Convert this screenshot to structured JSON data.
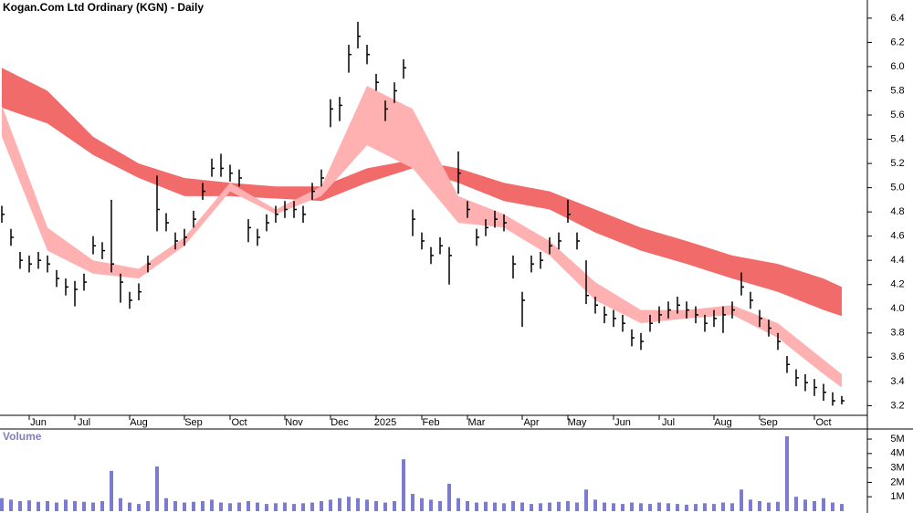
{
  "chart_data": [
    {
      "type": "ohlc",
      "title": "Kogan.Com Ltd Ordinary (KGN) - Daily",
      "categories": [
        null,
        null,
        null,
        "Jun",
        null,
        null,
        null,
        null,
        "Jul",
        null,
        null,
        null,
        null,
        null,
        "Aug",
        null,
        null,
        null,
        null,
        null,
        "Sep",
        null,
        null,
        null,
        null,
        "Oct",
        null,
        null,
        null,
        null,
        null,
        "Nov",
        null,
        null,
        null,
        null,
        "Dec",
        null,
        null,
        null,
        null,
        "2025",
        null,
        null,
        null,
        null,
        "Feb",
        null,
        null,
        null,
        null,
        "Mar",
        null,
        null,
        null,
        null,
        null,
        "Apr",
        null,
        null,
        null,
        null,
        "May",
        null,
        null,
        null,
        null,
        "Jun",
        null,
        null,
        null,
        null,
        "Jul",
        null,
        null,
        null,
        null,
        null,
        "Aug",
        null,
        null,
        null,
        null,
        "Sep",
        null,
        null,
        null,
        null,
        null,
        "Oct",
        null,
        null,
        null
      ],
      "close": [
        4.78,
        4.59,
        4.4,
        4.37,
        4.4,
        4.37,
        4.25,
        4.18,
        4.16,
        4.22,
        4.52,
        4.48,
        4.37,
        4.22,
        4.07,
        4.14,
        4.37,
        4.82,
        4.71,
        4.56,
        4.59,
        4.74,
        4.97,
        5.16,
        5.16,
        5.12,
        5.08,
        4.67,
        4.59,
        4.71,
        4.78,
        4.82,
        4.82,
        4.78,
        4.97,
        5.08,
        5.65,
        5.68,
        6.1,
        6.25,
        6.1,
        5.87,
        5.65,
        5.8,
        5.99,
        4.74,
        4.56,
        4.44,
        4.52,
        4.44,
        5.12,
        4.82,
        4.59,
        4.67,
        4.74,
        4.71,
        4.37,
        4.07,
        4.37,
        4.4,
        4.52,
        4.56,
        4.78,
        4.56,
        4.11,
        4.03,
        3.95,
        3.92,
        3.88,
        3.76,
        3.73,
        3.88,
        3.95,
        3.99,
        4.03,
        3.99,
        3.95,
        3.88,
        3.92,
        3.95,
        3.99,
        4.18,
        4.07,
        3.92,
        3.84,
        3.73,
        3.54,
        3.43,
        3.39,
        3.35,
        3.31,
        3.24,
        3.24
      ],
      "high": [
        4.85,
        4.66,
        4.47,
        4.44,
        4.47,
        4.44,
        4.32,
        4.25,
        4.23,
        4.29,
        4.6,
        4.55,
        4.9,
        4.29,
        4.14,
        4.21,
        4.44,
        5.1,
        4.79,
        4.63,
        4.66,
        4.81,
        5.04,
        5.24,
        5.28,
        5.19,
        5.15,
        4.74,
        4.66,
        4.78,
        4.85,
        4.89,
        4.89,
        4.85,
        5.04,
        5.15,
        5.73,
        5.75,
        6.18,
        6.37,
        6.18,
        5.94,
        5.72,
        5.87,
        6.06,
        4.82,
        4.63,
        4.51,
        4.59,
        4.51,
        5.3,
        4.89,
        4.66,
        4.74,
        4.81,
        4.78,
        4.44,
        4.14,
        4.44,
        4.47,
        4.59,
        4.63,
        4.9,
        4.63,
        4.4,
        4.1,
        4.02,
        3.99,
        3.95,
        3.83,
        3.8,
        3.95,
        4.02,
        4.06,
        4.1,
        4.06,
        4.02,
        3.95,
        3.99,
        4.02,
        4.06,
        4.3,
        4.14,
        3.99,
        3.91,
        3.8,
        3.61,
        3.5,
        3.46,
        3.42,
        3.38,
        3.31,
        3.28
      ],
      "low": [
        4.71,
        4.52,
        4.33,
        4.3,
        4.33,
        4.3,
        4.18,
        4.11,
        4.02,
        4.15,
        4.45,
        4.41,
        4.3,
        4.05,
        4.0,
        4.07,
        4.3,
        4.64,
        4.64,
        4.49,
        4.52,
        4.67,
        4.9,
        5.09,
        5.09,
        5.05,
        5.01,
        4.55,
        4.52,
        4.64,
        4.71,
        4.75,
        4.75,
        4.71,
        4.9,
        5.01,
        5.5,
        5.55,
        5.95,
        6.15,
        6.02,
        5.8,
        5.55,
        5.7,
        5.9,
        4.6,
        4.49,
        4.37,
        4.45,
        4.2,
        4.95,
        4.75,
        4.52,
        4.6,
        4.67,
        4.64,
        4.25,
        3.85,
        4.3,
        4.33,
        4.45,
        4.49,
        4.71,
        4.49,
        4.04,
        3.96,
        3.88,
        3.85,
        3.81,
        3.69,
        3.66,
        3.81,
        3.88,
        3.92,
        3.96,
        3.92,
        3.88,
        3.81,
        3.85,
        3.8,
        3.92,
        4.11,
        4.0,
        3.85,
        3.77,
        3.66,
        3.47,
        3.36,
        3.32,
        3.28,
        3.24,
        3.2,
        3.21
      ],
      "color": "#000000",
      "bands": [
        {
          "x": [
            0,
            5,
            10,
            15,
            20,
            25,
            30,
            35,
            40,
            45,
            50,
            55,
            60,
            65,
            70,
            75,
            80,
            85,
            90,
            92
          ],
          "upper": [
            5.99,
            5.8,
            5.42,
            5.2,
            5.08,
            5.04,
            5.01,
            5.01,
            5.16,
            5.23,
            5.16,
            5.04,
            4.97,
            4.82,
            4.67,
            4.56,
            4.44,
            4.37,
            4.25,
            4.18
          ],
          "lower": [
            5.66,
            5.53,
            5.27,
            5.08,
            4.93,
            4.93,
            4.91,
            4.89,
            5.04,
            5.16,
            5.04,
            4.89,
            4.82,
            4.63,
            4.48,
            4.37,
            4.25,
            4.14,
            3.99,
            3.94
          ],
          "color": "#f26b6b"
        },
        {
          "x": [
            0,
            5,
            10,
            15,
            20,
            25,
            30,
            35,
            40,
            45,
            50,
            55,
            60,
            65,
            70,
            75,
            80,
            85,
            90,
            92
          ],
          "upper": [
            5.68,
            4.67,
            4.4,
            4.33,
            4.59,
            5.04,
            4.82,
            5.01,
            5.84,
            5.65,
            4.93,
            4.78,
            4.56,
            4.22,
            3.99,
            3.99,
            4.03,
            3.88,
            3.58,
            3.46
          ],
          "lower": [
            5.42,
            4.48,
            4.29,
            4.25,
            4.52,
            4.97,
            4.78,
            4.93,
            5.35,
            5.16,
            4.71,
            4.67,
            4.44,
            4.07,
            3.88,
            3.92,
            3.95,
            3.76,
            3.46,
            3.35
          ],
          "color": "#ffb0b0"
        }
      ],
      "ylim": [
        3.12,
        6.55
      ],
      "yticks": [
        3.2,
        3.4,
        3.6,
        3.8,
        {
          "value": 4,
          "label": "4.0"
        },
        4.2,
        4.4,
        4.6,
        4.8,
        {
          "value": 5,
          "label": "5.0"
        },
        5.2,
        5.4,
        5.6,
        5.8,
        {
          "value": 6,
          "label": "6.0"
        },
        6.2,
        6.4
      ]
    },
    {
      "type": "bar",
      "title": "Volume",
      "values": [
        900000,
        800000,
        700000,
        750000,
        650000,
        700000,
        600000,
        800000,
        700000,
        650000,
        600000,
        700000,
        2800000,
        900000,
        600000,
        500000,
        700000,
        3100000,
        900000,
        700000,
        600000,
        650000,
        700000,
        800000,
        600000,
        550000,
        600000,
        700000,
        600000,
        500000,
        550000,
        600000,
        500000,
        550000,
        600000,
        700000,
        800000,
        900000,
        1000000,
        900000,
        800000,
        700000,
        600000,
        700000,
        3600000,
        1200000,
        900000,
        800000,
        700000,
        1900000,
        900000,
        700000,
        600000,
        650000,
        600000,
        550000,
        700000,
        600000,
        500000,
        550000,
        600000,
        650000,
        700000,
        600000,
        1500000,
        800000,
        600000,
        550000,
        500000,
        600000,
        550000,
        500000,
        600000,
        550000,
        500000,
        450000,
        500000,
        550000,
        500000,
        600000,
        550000,
        1500000,
        800000,
        700000,
        600000,
        650000,
        5200000,
        1000000,
        800000,
        700000,
        900000,
        600000,
        500000
      ],
      "color": "#7b7bd0",
      "ylim": [
        0,
        5700000
      ],
      "yticks": [
        {
          "value": 1000000,
          "label": "1M"
        },
        {
          "value": 2000000,
          "label": "2M"
        },
        {
          "value": 3000000,
          "label": "3M"
        },
        {
          "value": 4000000,
          "label": "4M"
        },
        {
          "value": 5000000,
          "label": "5M"
        }
      ]
    }
  ]
}
